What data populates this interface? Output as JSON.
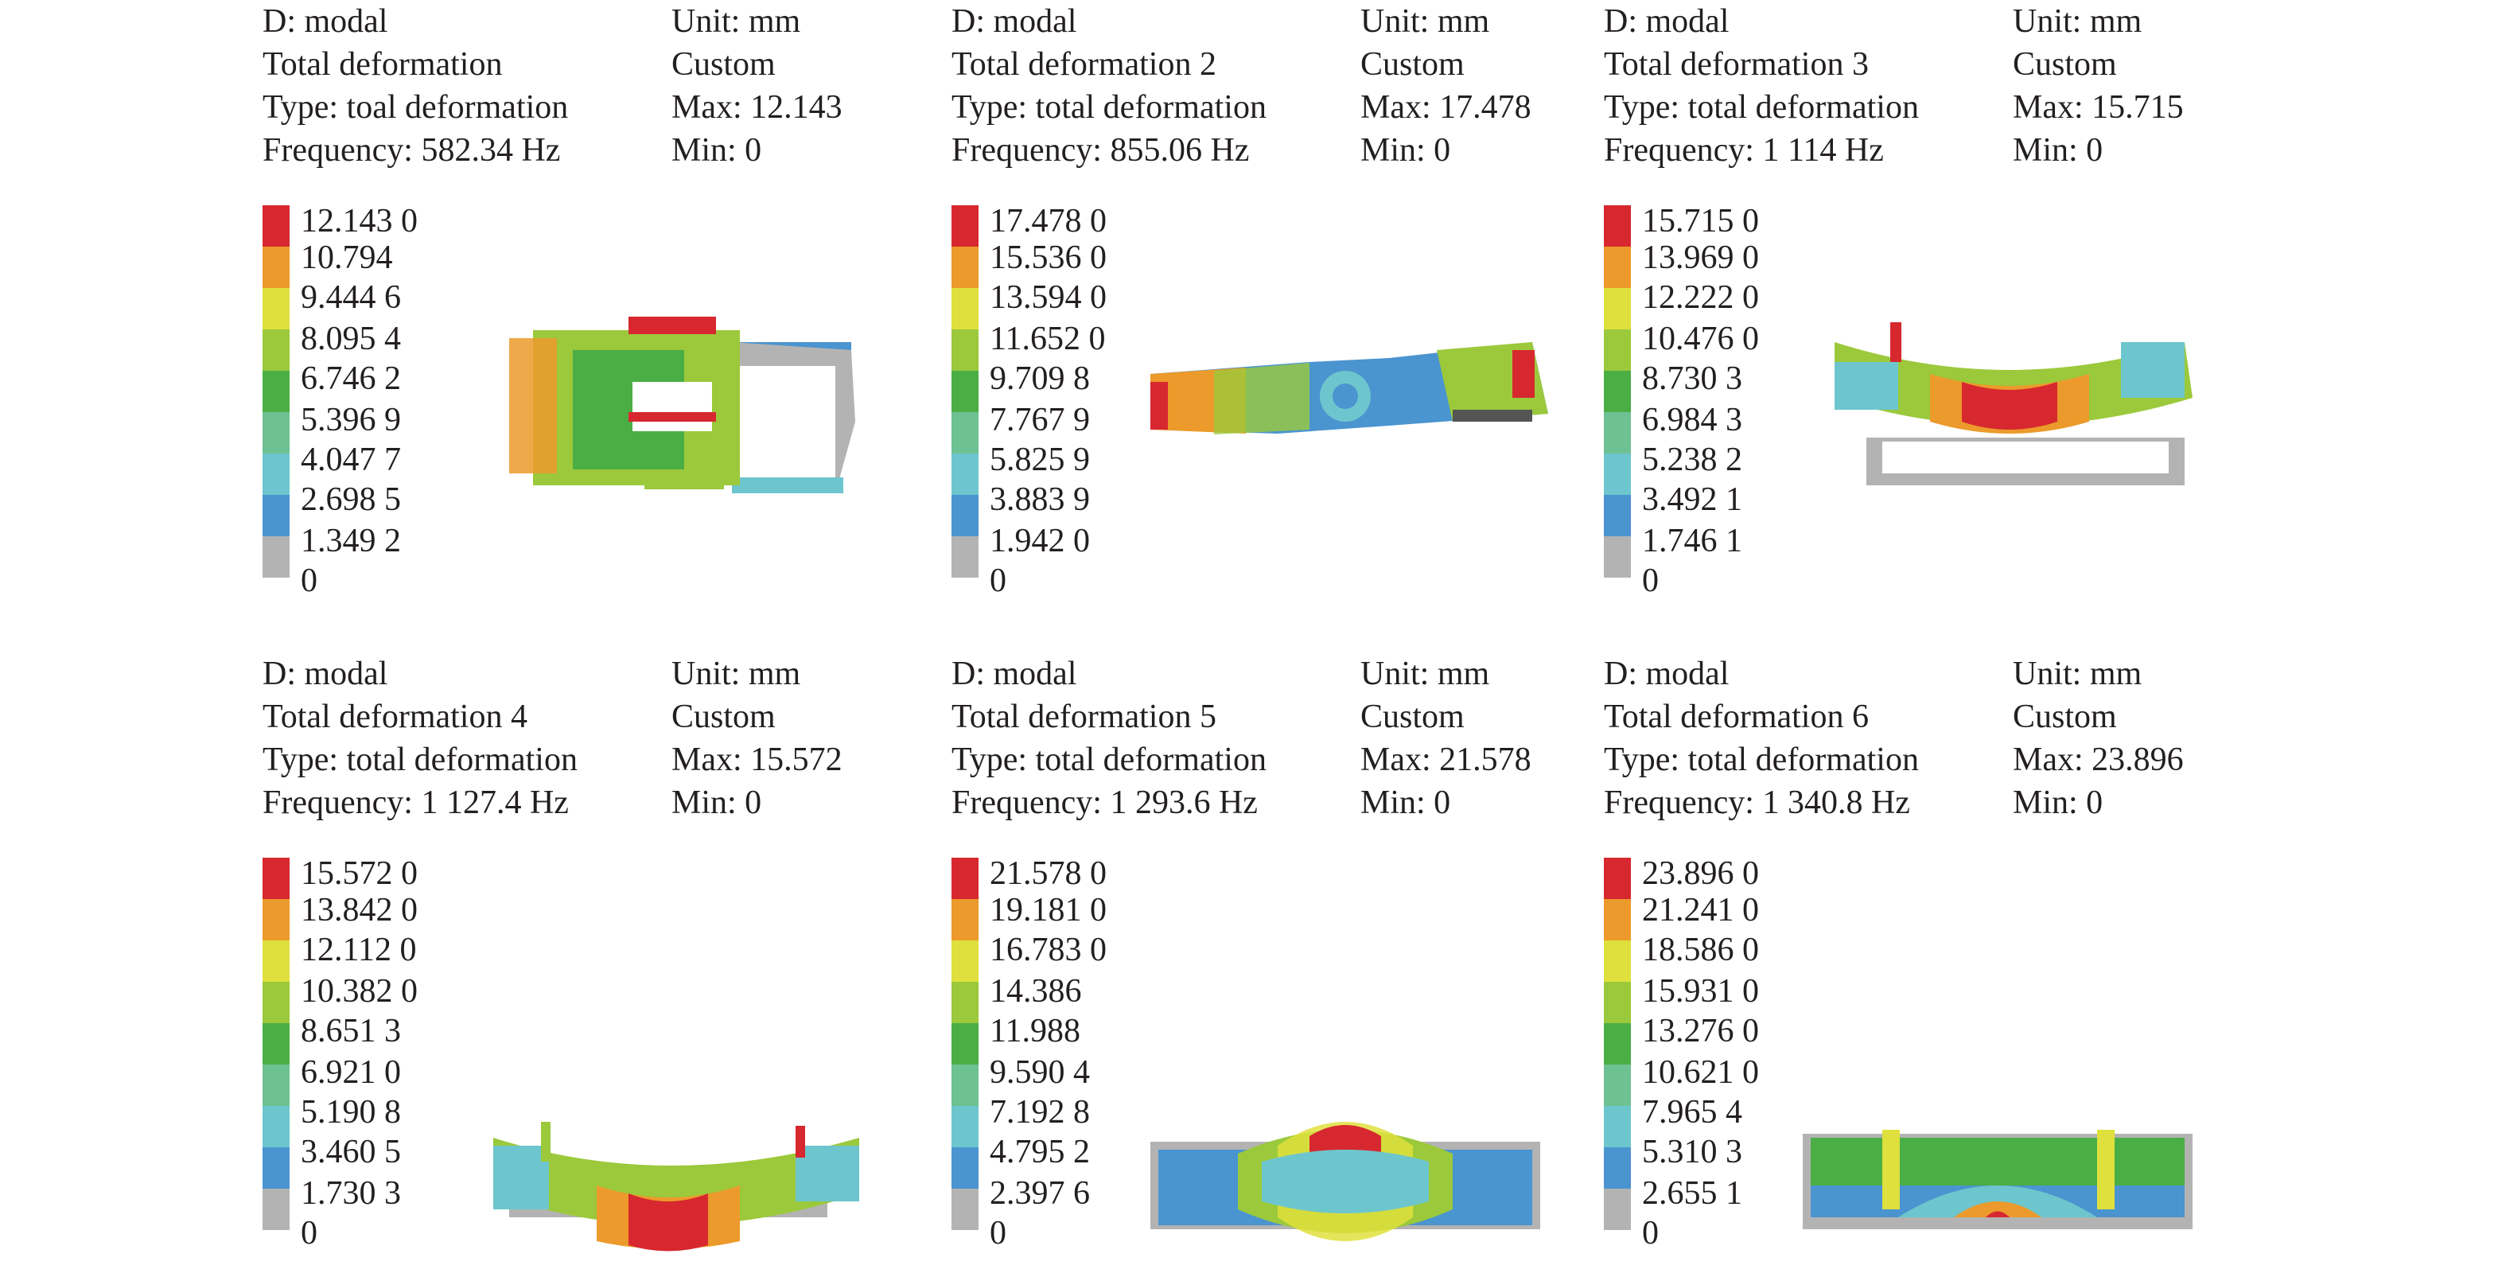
{
  "palette": [
    "#d7282f",
    "#ec9a2b",
    "#dfe03d",
    "#9bc93b",
    "#4aae45",
    "#6ec192",
    "#6dc6cd",
    "#4a94d0",
    "#b3b3b3"
  ],
  "panels": [
    {
      "name": "panel-mode-1",
      "system": "D: modal",
      "title": "Total deformation",
      "type": "Type: toal deformation",
      "frequency": "Frequency: 582.34 Hz",
      "unit": "Unit: mm",
      "custom": "Custom",
      "max": "Max: 12.143",
      "min": "Min: 0",
      "legend": [
        "12.143 0",
        "10.794",
        "9.444 6",
        "8.095 4",
        "6.746 2",
        "5.396 9",
        "4.047 7",
        "2.698 5",
        "1.349 2",
        "0"
      ]
    },
    {
      "name": "panel-mode-2",
      "system": "D: modal",
      "title": "Total deformation 2",
      "type": "Type: total deformation",
      "frequency": "Frequency: 855.06 Hz",
      "unit": "Unit: mm",
      "custom": "Custom",
      "max": "Max: 17.478",
      "min": "Min: 0",
      "legend": [
        "17.478 0",
        "15.536 0",
        "13.594 0",
        "11.652 0",
        "9.709 8",
        "7.767 9",
        "5.825 9",
        "3.883 9",
        "1.942 0",
        "0"
      ]
    },
    {
      "name": "panel-mode-3",
      "system": "D: modal",
      "title": "Total deformation 3",
      "type": "Type: total deformation",
      "frequency": "Frequency: 1 114 Hz",
      "unit": "Unit: mm",
      "custom": "Custom",
      "max": "Max: 15.715",
      "min": "Min: 0",
      "legend": [
        "15.715 0",
        "13.969 0",
        "12.222 0",
        "10.476 0",
        "8.730 3",
        "6.984 3",
        "5.238 2",
        "3.492 1",
        "1.746 1",
        "0"
      ]
    },
    {
      "name": "panel-mode-4",
      "system": "D: modal",
      "title": "Total deformation 4",
      "type": "Type: total deformation",
      "frequency": "Frequency: 1 127.4 Hz",
      "unit": "Unit: mm",
      "custom": "Custom",
      "max": "Max: 15.572",
      "min": "Min: 0",
      "legend": [
        "15.572 0",
        "13.842 0",
        "12.112 0",
        "10.382 0",
        "8.651 3",
        "6.921 0",
        "5.190 8",
        "3.460 5",
        "1.730 3",
        "0"
      ]
    },
    {
      "name": "panel-mode-5",
      "system": "D: modal",
      "title": "Total deformation 5",
      "type": "Type: total deformation",
      "frequency": "Frequency: 1 293.6 Hz",
      "unit": "Unit: mm",
      "custom": "Custom",
      "max": "Max: 21.578",
      "min": "Min: 0",
      "legend": [
        "21.578 0",
        "19.181 0",
        "16.783 0",
        "14.386",
        "11.988",
        "9.590 4",
        "7.192 8",
        "4.795 2",
        "2.397 6",
        "0"
      ]
    },
    {
      "name": "panel-mode-6",
      "system": "D: modal",
      "title": "Total deformation 6",
      "type": "Type: total deformation",
      "frequency": "Frequency: 1 340.8 Hz",
      "unit": "Unit: mm",
      "custom": "Custom",
      "max": "Max: 23.896",
      "min": "Min: 0",
      "legend": [
        "23.896 0",
        "21.241 0",
        "18.586 0",
        "15.931 0",
        "13.276 0",
        "10.621 0",
        "7.965 4",
        "5.310 3",
        "2.655 1",
        "0"
      ]
    }
  ]
}
